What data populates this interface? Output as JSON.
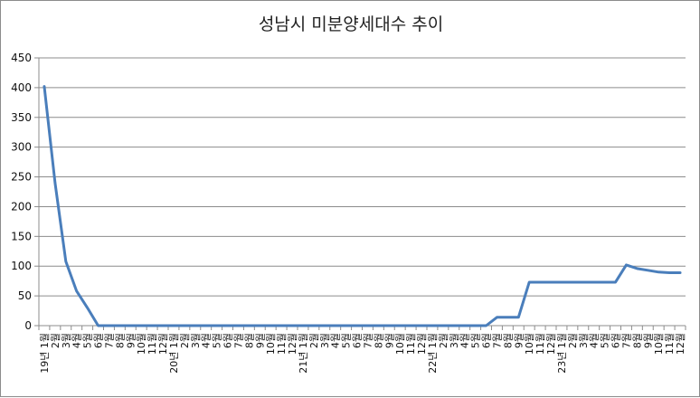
{
  "chart_data": {
    "type": "line",
    "title": "성남시 미분양세대수 추이",
    "xlabel": "",
    "ylabel": "",
    "ylim": [
      0,
      450
    ],
    "yticks": [
      0,
      50,
      100,
      150,
      200,
      250,
      300,
      350,
      400,
      450
    ],
    "grid": true,
    "legend": "none",
    "colors": {
      "line": "#4a7ebb",
      "grid": "#8c8c8c",
      "axis": "#8c8c8c"
    },
    "categories": [
      "19년 1월",
      "2월",
      "3월",
      "4월",
      "5월",
      "6월",
      "7월",
      "8월",
      "9월",
      "10월",
      "11월",
      "12월",
      "20년 1월",
      "2월",
      "3월",
      "4월",
      "5월",
      "6월",
      "7월",
      "8월",
      "9월",
      "10월",
      "11월",
      "12월",
      "21년 1월",
      "2월",
      "3월",
      "4월",
      "5월",
      "6월",
      "7월",
      "8월",
      "9월",
      "10월",
      "11월",
      "12월",
      "22년 1월",
      "2월",
      "3월",
      "4월",
      "5월",
      "6월",
      "7월",
      "8월",
      "9월",
      "10월",
      "11월",
      "12월",
      "23년 1월",
      "2월",
      "3월",
      "4월",
      "5월",
      "6월",
      "7월",
      "8월",
      "9월",
      "10월",
      "11월",
      "12월"
    ],
    "series": [
      {
        "values": [
          402,
          240,
          108,
          58,
          30,
          0,
          0,
          0,
          0,
          0,
          0,
          0,
          0,
          0,
          0,
          0,
          0,
          0,
          0,
          0,
          0,
          0,
          0,
          0,
          0,
          0,
          0,
          0,
          0,
          0,
          0,
          0,
          0,
          0,
          0,
          0,
          0,
          0,
          0,
          0,
          0,
          0,
          14,
          14,
          14,
          73,
          73,
          73,
          73,
          73,
          73,
          73,
          73,
          73,
          102,
          96,
          93,
          90,
          89,
          89
        ]
      }
    ]
  }
}
